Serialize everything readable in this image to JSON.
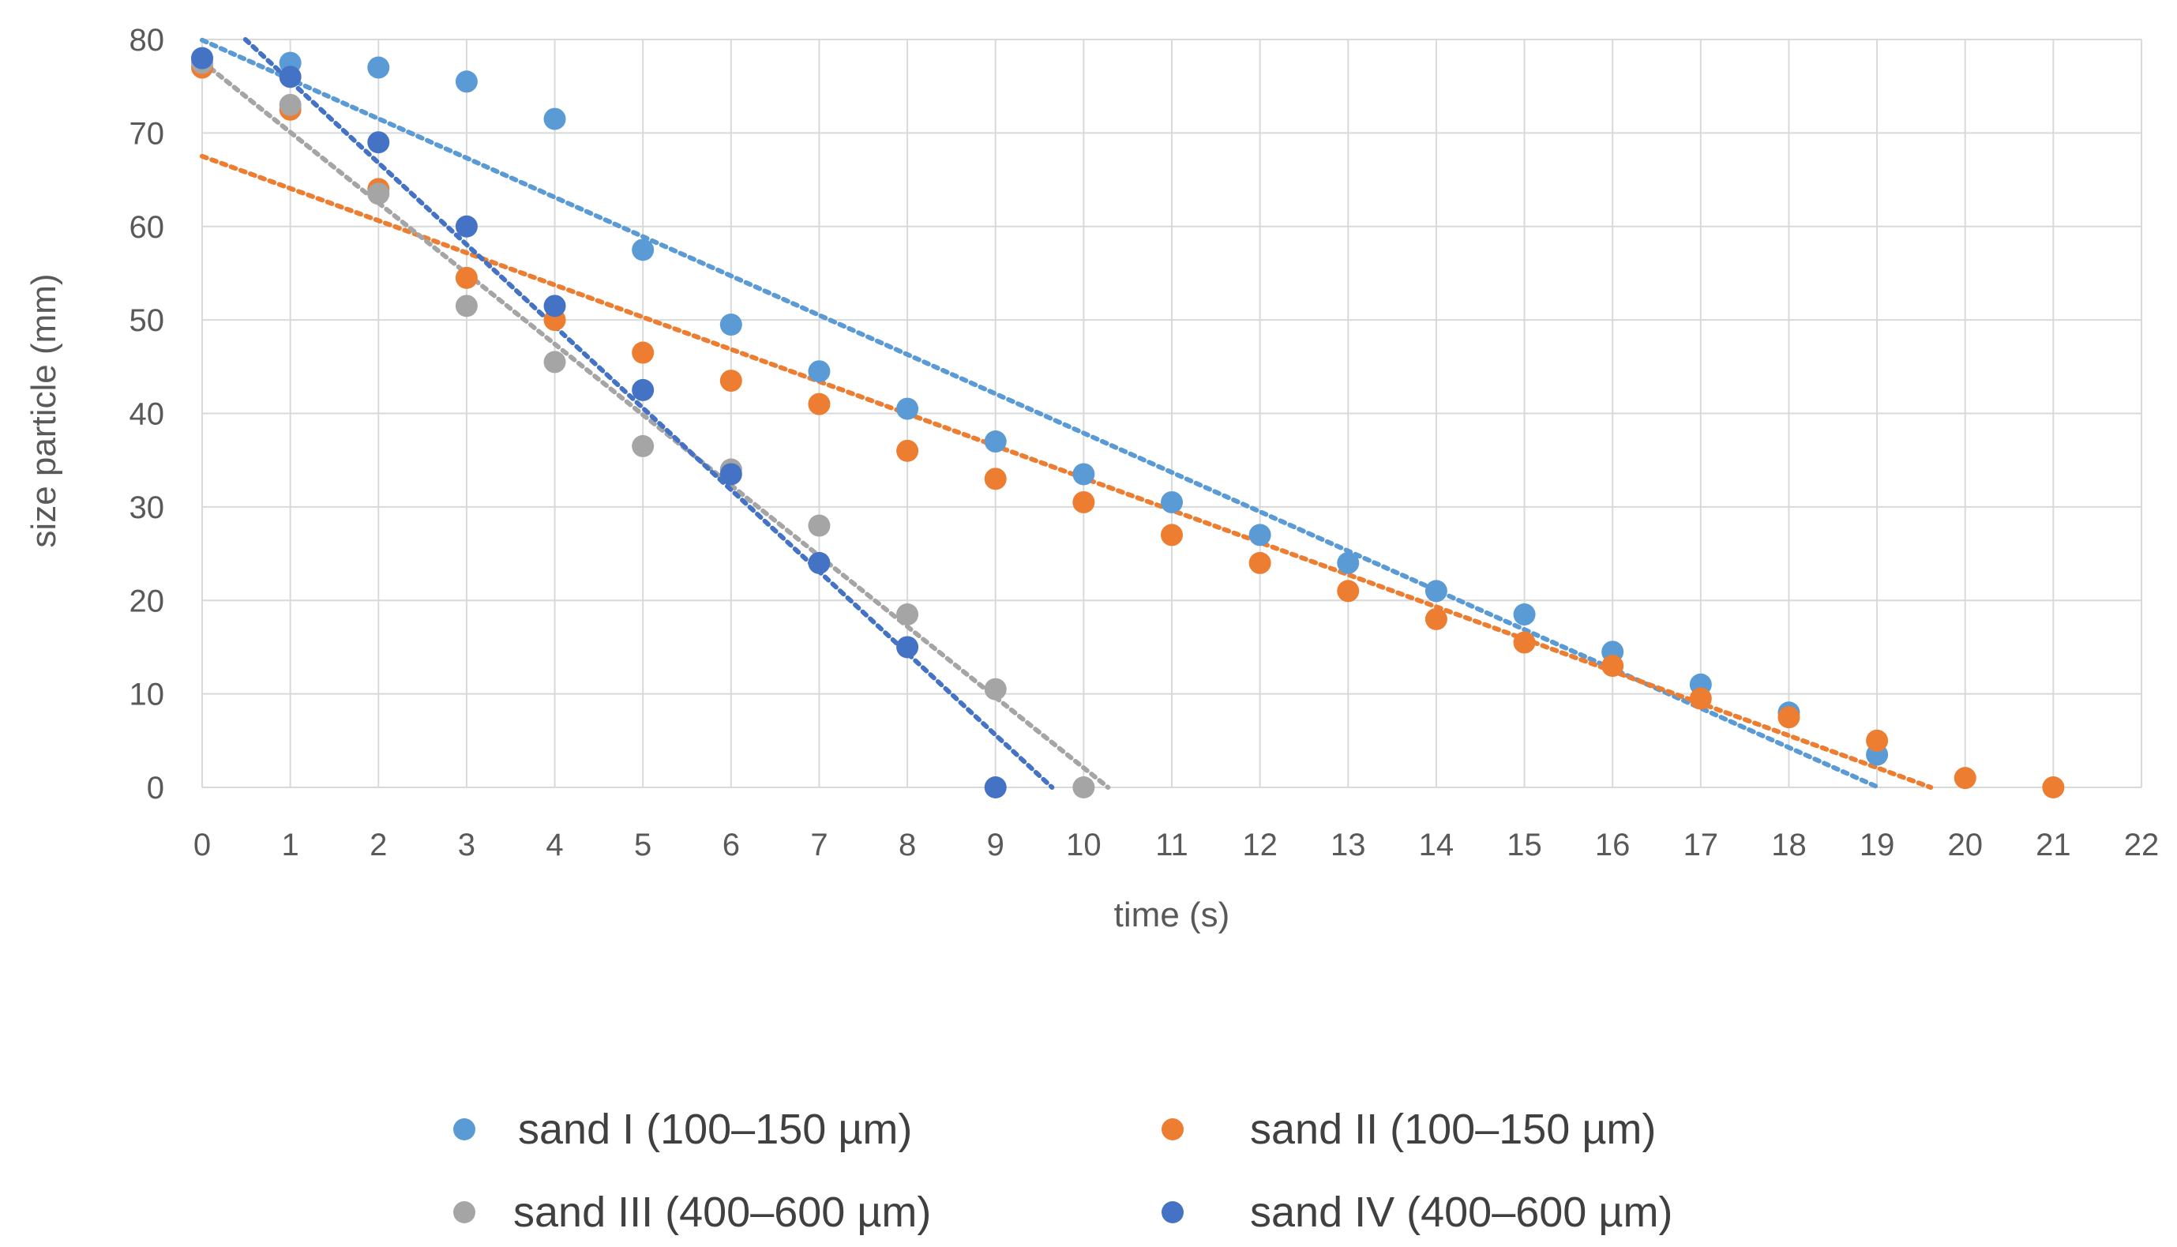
{
  "chart_data": {
    "type": "scatter",
    "xlabel": "time (s)",
    "ylabel": "size particle (mm)",
    "xlim": [
      0,
      22
    ],
    "ylim": [
      0,
      80
    ],
    "x_ticks": [
      "0",
      "1",
      "2",
      "3",
      "4",
      "5",
      "6",
      "7",
      "8",
      "9",
      "10",
      "11",
      "12",
      "13",
      "14",
      "15",
      "16",
      "17",
      "18",
      "19",
      "20",
      "21",
      "22"
    ],
    "y_ticks": [
      "0",
      "10",
      "20",
      "30",
      "40",
      "50",
      "60",
      "70",
      "80"
    ],
    "grid": true,
    "legend_position": "bottom",
    "trendlines": "linear, dotted",
    "series": [
      {
        "name": "sand I (100–150 µm)",
        "color": "#5B9BD5",
        "x": [
          0,
          1,
          2,
          3,
          4,
          5,
          6,
          7,
          8,
          9,
          10,
          11,
          12,
          13,
          14,
          15,
          16,
          17,
          18,
          19
        ],
        "y": [
          78,
          77.5,
          77,
          75.5,
          71.5,
          57.5,
          49.5,
          44.5,
          40.5,
          37,
          33.5,
          30.5,
          27,
          24,
          21,
          18.5,
          14.5,
          11,
          8,
          3.5
        ]
      },
      {
        "name": "sand II (100–150 µm)",
        "color": "#ED7D31",
        "x": [
          0,
          1,
          2,
          3,
          4,
          5,
          6,
          7,
          8,
          9,
          10,
          11,
          12,
          13,
          14,
          15,
          16,
          17,
          18,
          19,
          20,
          21
        ],
        "y": [
          77,
          72.5,
          64,
          54.5,
          50,
          46.5,
          43.5,
          41,
          36,
          33,
          30.5,
          27,
          24,
          21,
          18,
          15.5,
          13,
          9.5,
          7.5,
          5,
          1,
          0
        ]
      },
      {
        "name": "sand III (400–600 µm)",
        "color": "#A5A5A5",
        "x": [
          0,
          1,
          2,
          3,
          4,
          5,
          6,
          7,
          8,
          9,
          10
        ],
        "y": [
          77.5,
          73,
          63.5,
          51.5,
          45.5,
          36.5,
          34,
          28,
          18.5,
          10.5,
          0
        ]
      },
      {
        "name": "sand IV (400–600 µm)",
        "color": "#4472C4",
        "x": [
          0,
          1,
          2,
          3,
          4,
          5,
          6,
          7,
          8,
          9
        ],
        "y": [
          78,
          76,
          69,
          60,
          51.5,
          42.5,
          33.5,
          24,
          15,
          0
        ]
      }
    ]
  }
}
